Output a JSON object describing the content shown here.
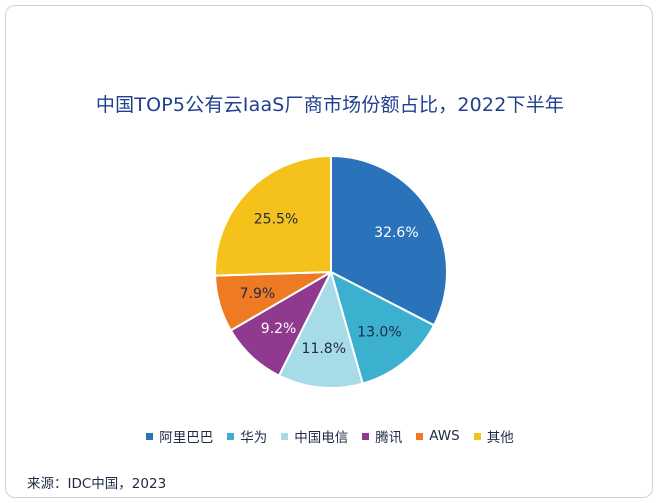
{
  "chart_data": {
    "type": "pie",
    "title": "中国TOP5公有云IaaS厂商市场份额占比，2022下半年",
    "series": [
      {
        "name": "阿里巴巴",
        "value": 32.6,
        "label": "32.6%",
        "color": "#2a72b9"
      },
      {
        "name": "华为",
        "value": 13.0,
        "label": "13.0%",
        "color": "#3cb1cf"
      },
      {
        "name": "中国电信",
        "value": 11.8,
        "label": "11.8%",
        "color": "#a7dbe8"
      },
      {
        "name": "腾讯",
        "value": 9.2,
        "label": "9.2%",
        "color": "#8f3a8f"
      },
      {
        "name": "AWS",
        "value": 7.9,
        "label": "7.9%",
        "color": "#ee7a23"
      },
      {
        "name": "其他",
        "value": 25.5,
        "label": "25.5%",
        "color": "#f4c21b"
      }
    ],
    "legend_position": "bottom",
    "start_angle": "12 o'clock",
    "direction": "clockwise"
  },
  "source": "来源：IDC中国，2023"
}
